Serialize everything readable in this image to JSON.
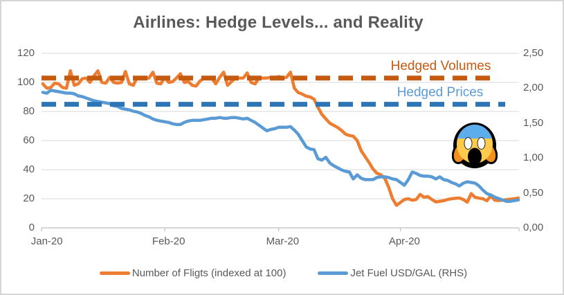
{
  "chart_data": {
    "type": "line",
    "title": "Airlines: Hedge Levels... and Reality",
    "x_axis": {
      "tick_labels": [
        "Jan-20",
        "Feb-20",
        "Mar-20",
        "Apr-20"
      ],
      "unit": "days-from-Jan-1-2020",
      "range_days": [
        0,
        121
      ]
    },
    "left_axis": {
      "range": [
        0,
        120
      ],
      "ticks": [
        120,
        100,
        80,
        60,
        40,
        20,
        0
      ],
      "tick_labels": [
        "120",
        "100",
        "80",
        "60",
        "40",
        "20",
        "0"
      ]
    },
    "right_axis": {
      "range": [
        0,
        2.5
      ],
      "ticks": [
        2.5,
        2.0,
        1.5,
        1.0,
        0.5,
        0.0
      ],
      "tick_labels": [
        "2,50",
        "2,00",
        "1,50",
        "1,00",
        "0,50",
        "0,00"
      ]
    },
    "grid": "horizontal",
    "legend_position": "bottom",
    "series": [
      {
        "name": "Number of Fligts (indexed at 100)",
        "axis": "left",
        "color": "#ED7D31",
        "x_start_day": 0,
        "x_step_days": 1,
        "values": [
          99,
          96,
          96.5,
          99.5,
          99,
          96.5,
          96,
          108,
          98,
          99,
          102.5,
          103,
          100,
          104.5,
          108,
          100,
          99.5,
          103.5,
          100,
          99.5,
          100,
          107.5,
          99,
          98,
          103.5,
          103,
          103,
          103,
          107,
          99.5,
          99,
          103.5,
          100,
          100.5,
          103,
          106,
          100,
          100.5,
          98,
          97.5,
          101,
          103,
          103.5,
          103,
          99,
          103.5,
          107,
          98,
          100.5,
          103,
          103,
          103,
          106.5,
          100,
          99,
          103,
          103,
          103,
          103.5,
          103,
          104,
          103,
          103.5,
          107,
          96,
          93,
          92,
          90.5,
          90,
          88.5,
          83,
          78,
          75,
          72,
          70.5,
          69,
          67,
          64.5,
          63.5,
          63,
          60,
          53,
          49,
          45,
          40.5,
          37.5,
          36.5,
          34,
          28,
          20,
          15.5,
          17.5,
          19.5,
          20,
          19,
          19.5,
          23,
          21,
          21.5,
          19.5,
          17.8,
          18.3,
          18.6,
          19.5,
          20,
          20.3,
          20.5,
          19.5,
          17.6,
          23.5,
          21,
          20.4,
          20,
          18.6,
          22,
          19,
          18.8,
          19,
          19.4,
          19.7,
          20,
          20.5
        ]
      },
      {
        "name": "Jet Fuel USD/GAL (RHS)",
        "axis": "right",
        "color": "#5B9BD5",
        "x_start_day": 0,
        "x_step_days": 1,
        "values": [
          1.94,
          1.93,
          1.97,
          1.96,
          1.95,
          1.94,
          1.93,
          1.93,
          1.92,
          1.89,
          1.88,
          1.86,
          1.84,
          1.82,
          1.81,
          1.8,
          1.79,
          1.78,
          1.75,
          1.74,
          1.71,
          1.7,
          1.69,
          1.67,
          1.66,
          1.64,
          1.61,
          1.59,
          1.56,
          1.54,
          1.53,
          1.52,
          1.51,
          1.49,
          1.48,
          1.48,
          1.51,
          1.53,
          1.54,
          1.54,
          1.54,
          1.55,
          1.56,
          1.57,
          1.57,
          1.58,
          1.57,
          1.57,
          1.58,
          1.58,
          1.57,
          1.56,
          1.57,
          1.54,
          1.51,
          1.47,
          1.43,
          1.39,
          1.41,
          1.42,
          1.44,
          1.44,
          1.44,
          1.45,
          1.4,
          1.34,
          1.25,
          1.16,
          1.13,
          1.12,
          0.99,
          0.97,
          1.01,
          0.93,
          0.89,
          0.86,
          0.83,
          0.81,
          0.8,
          0.7,
          0.76,
          0.71,
          0.69,
          0.69,
          0.69,
          0.72,
          0.73,
          0.73,
          0.72,
          0.7,
          0.69,
          0.65,
          0.61,
          0.69,
          0.8,
          0.78,
          0.75,
          0.74,
          0.74,
          0.73,
          0.7,
          0.73,
          0.69,
          0.68,
          0.65,
          0.63,
          0.6,
          0.64,
          0.66,
          0.65,
          0.64,
          0.6,
          0.54,
          0.49,
          0.47,
          0.44,
          0.42,
          0.4,
          0.38,
          0.38,
          0.39,
          0.4
        ]
      }
    ],
    "reference_lines": [
      {
        "label": "Hedged Volumes",
        "axis": "left",
        "value": 103,
        "line_color": "#C55A11",
        "label_color": "#C55A11",
        "style": "dashed"
      },
      {
        "label": "Hedged Prices",
        "axis": "right",
        "value": 1.77,
        "line_color": "#2E75B6",
        "label_color": "#5B9BD5",
        "style": "dashed"
      }
    ],
    "annotations": [
      {
        "emoji": "😱",
        "description": "face-screaming-in-fear",
        "approx_day": 110,
        "approx_left_value": 57
      }
    ]
  },
  "colors": {
    "title_text": "#595959",
    "axis_text": "#595959",
    "gridline": "#D9D9D9",
    "axis_line": "#BFBFBF",
    "frame_border": "#D6D6D6"
  }
}
